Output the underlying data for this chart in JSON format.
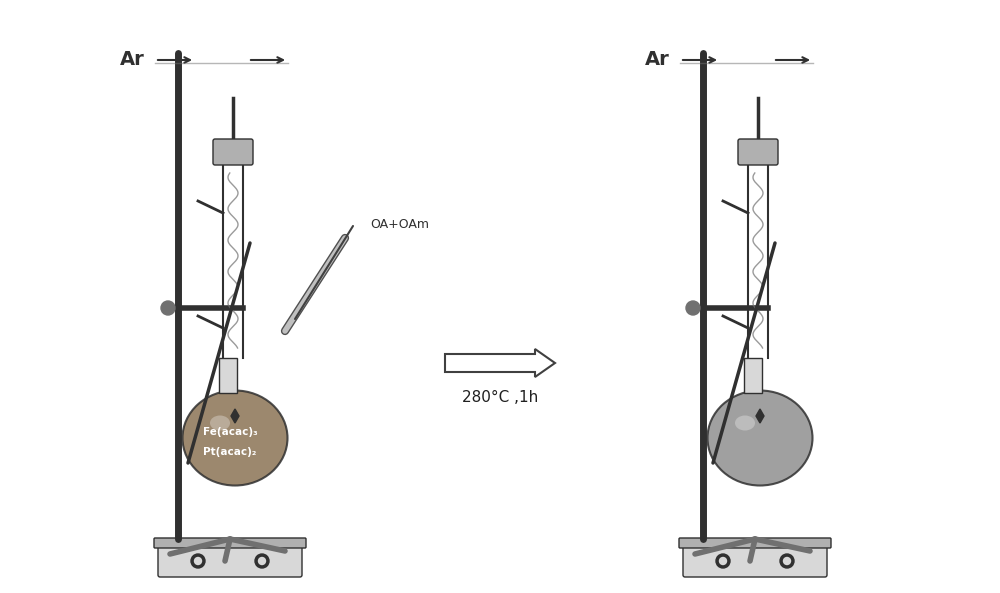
{
  "fig_width": 10.0,
  "fig_height": 5.93,
  "dpi": 100,
  "bg_color": "#ffffff",
  "title": "",
  "arrow_text": "280°C ,1h",
  "label_left_line1": "Fe(acac)₃",
  "label_left_line2": "Pt(acac)₂",
  "label_syringe": "OA+OAm",
  "label_ar": "Ar",
  "flask_left_color": "#8B7355",
  "flask_right_color": "#A0A0A0",
  "stand_color": "#505050",
  "gray_light": "#C8C8C8",
  "gray_dark": "#404040",
  "gray_mid": "#888888"
}
